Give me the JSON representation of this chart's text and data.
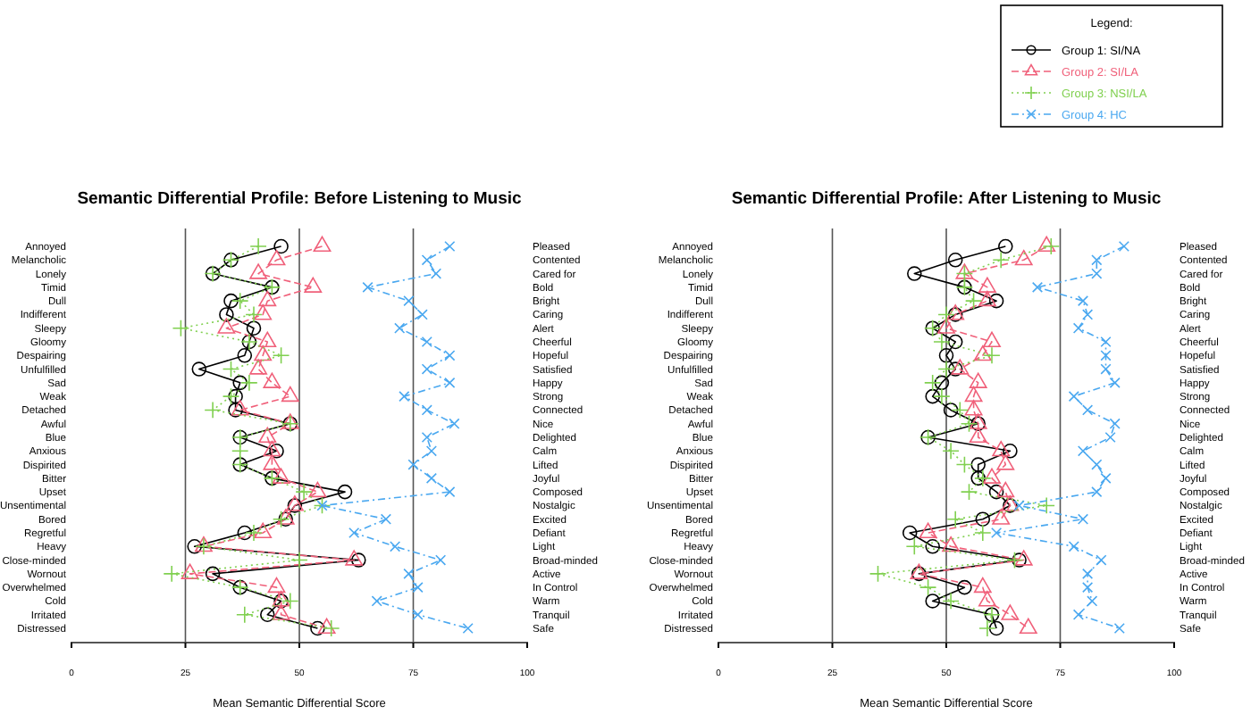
{
  "chart_data": [
    {
      "type": "line",
      "orientation": "horizontal",
      "title": "Semantic Differential Profile: Before Listening to Music",
      "xlabel": "Mean Semantic Differential Score",
      "categories": [
        "Annoyed",
        "Melancholic",
        "Lonely",
        "Timid",
        "Dull",
        "Indifferent",
        "Sleepy",
        "Gloomy",
        "Despairing",
        "Unfulfilled",
        "Sad",
        "Weak",
        "Detached",
        "Awful",
        "Blue",
        "Anxious",
        "Dispirited",
        "Bitter",
        "Upset",
        "Unsentimental",
        "Bored",
        "Regretful",
        "Heavy",
        "Close-minded",
        "Wornout",
        "Overwhelmed",
        "Cold",
        "Irritated",
        "Distressed"
      ],
      "y2_categories": [
        "Pleased",
        "Contented",
        "Cared for",
        "Bold",
        "Bright",
        "Caring",
        "Alert",
        "Cheerful",
        "Hopeful",
        "Satisfied",
        "Happy",
        "Strong",
        "Connected",
        "Nice",
        "Delighted",
        "Calm",
        "Lifted",
        "Joyful",
        "Composed",
        "Nostalgic",
        "Excited",
        "Defiant",
        "Light",
        "Broad-minded",
        "Active",
        "In Control",
        "Warm",
        "Tranquil",
        "Safe"
      ],
      "xlim": [
        0,
        100
      ],
      "xticks": [
        0,
        25,
        50,
        75,
        100
      ],
      "grid": "x",
      "series": [
        {
          "color": "#000000",
          "marker": "circle",
          "line_style": "solid",
          "values": [
            46,
            35,
            31,
            44,
            35,
            34,
            40,
            39,
            38,
            28,
            37,
            36,
            36,
            48,
            37,
            45,
            37,
            44,
            60,
            49,
            47,
            38,
            27,
            63,
            31,
            37,
            46,
            43,
            54
          ]
        },
        {
          "color": "#f0607a",
          "marker": "triangle",
          "line_style": "dashed",
          "values": [
            55,
            45,
            41,
            53,
            43,
            42,
            34,
            43,
            42,
            41,
            44,
            48,
            37,
            48,
            43,
            44,
            44,
            46,
            54,
            49,
            47,
            42,
            29,
            62,
            26,
            45,
            46,
            46,
            56
          ]
        },
        {
          "color": "#80d050",
          "marker": "cross",
          "line_style": "dotted",
          "values": [
            41,
            35,
            31,
            44,
            37,
            40,
            24,
            39,
            46,
            35,
            39,
            35,
            31,
            48,
            37,
            37,
            37,
            44,
            51,
            55,
            46,
            40,
            29,
            50,
            22,
            37,
            48,
            38,
            57
          ]
        },
        {
          "color": "#4aa8f0",
          "marker": "x",
          "line_style": "dashdot",
          "values": [
            83,
            78,
            80,
            65,
            74,
            77,
            72,
            78,
            83,
            78,
            83,
            73,
            78,
            84,
            78,
            79,
            75,
            79,
            83,
            55,
            69,
            62,
            71,
            81,
            74,
            76,
            67,
            76,
            87
          ]
        }
      ]
    },
    {
      "type": "line",
      "orientation": "horizontal",
      "title": "Semantic Differential Profile: After Listening to Music",
      "xlabel": "Mean Semantic Differential Score",
      "categories": [
        "Annoyed",
        "Melancholic",
        "Lonely",
        "Timid",
        "Dull",
        "Indifferent",
        "Sleepy",
        "Gloomy",
        "Despairing",
        "Unfulfilled",
        "Sad",
        "Weak",
        "Detached",
        "Awful",
        "Blue",
        "Anxious",
        "Dispirited",
        "Bitter",
        "Upset",
        "Unsentimental",
        "Bored",
        "Regretful",
        "Heavy",
        "Close-minded",
        "Wornout",
        "Overwhelmed",
        "Cold",
        "Irritated",
        "Distressed"
      ],
      "y2_categories": [
        "Pleased",
        "Contented",
        "Cared for",
        "Bold",
        "Bright",
        "Caring",
        "Alert",
        "Cheerful",
        "Hopeful",
        "Satisfied",
        "Happy",
        "Strong",
        "Connected",
        "Nice",
        "Delighted",
        "Calm",
        "Lifted",
        "Joyful",
        "Composed",
        "Nostalgic",
        "Excited",
        "Defiant",
        "Light",
        "Broad-minded",
        "Active",
        "In Control",
        "Warm",
        "Tranquil",
        "Safe"
      ],
      "xlim": [
        0,
        100
      ],
      "xticks": [
        0,
        25,
        50,
        75,
        100
      ],
      "grid": "x",
      "legend": "top right",
      "legend_title": "Legend:",
      "series": [
        {
          "name": "Group 1: SI/NA",
          "color": "#000000",
          "marker": "circle",
          "line_style": "solid",
          "values": [
            63,
            52,
            43,
            54,
            61,
            52,
            47,
            52,
            50,
            52,
            49,
            47,
            51,
            57,
            46,
            64,
            57,
            57,
            61,
            64,
            58,
            42,
            47,
            66,
            44,
            54,
            47,
            60,
            61
          ]
        },
        {
          "name": "Group 2: SI/LA",
          "color": "#f0607a",
          "marker": "triangle",
          "line_style": "dashed",
          "values": [
            72,
            67,
            54,
            59,
            59,
            52,
            50,
            60,
            58,
            53,
            57,
            56,
            56,
            57,
            57,
            62,
            63,
            60,
            63,
            64,
            62,
            46,
            51,
            67,
            44,
            58,
            59,
            64,
            68
          ]
        },
        {
          "name": "Group 3: NSI/LA",
          "color": "#80d050",
          "marker": "cross",
          "line_style": "dotted",
          "values": [
            73,
            62,
            54,
            54,
            56,
            50,
            47,
            49,
            60,
            50,
            47,
            49,
            53,
            55,
            46,
            51,
            54,
            58,
            55,
            72,
            52,
            58,
            43,
            65,
            35,
            46,
            51,
            60,
            59
          ]
        },
        {
          "name": "Group 4: HC",
          "color": "#4aa8f0",
          "marker": "x",
          "line_style": "dashdot",
          "values": [
            89,
            83,
            83,
            70,
            80,
            81,
            79,
            85,
            85,
            85,
            87,
            78,
            81,
            87,
            86,
            80,
            83,
            85,
            83,
            66,
            80,
            61,
            78,
            84,
            81,
            81,
            82,
            79,
            88
          ]
        }
      ]
    }
  ]
}
